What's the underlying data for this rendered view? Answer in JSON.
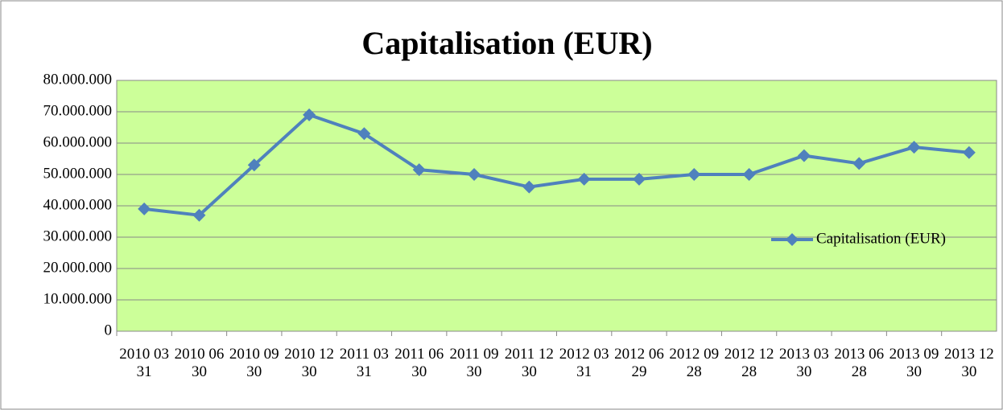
{
  "chart_data": {
    "type": "line",
    "title": "Capitalisation (EUR)",
    "categories": [
      "2010 03 31",
      "2010 06 30",
      "2010 09 30",
      "2010 12 30",
      "2011 03 31",
      "2011 06 30",
      "2011 09 30",
      "2011 12 30",
      "2012 03 31",
      "2012 06 29",
      "2012 09 28",
      "2012 12 28",
      "2013 03 30",
      "2013 06 28",
      "2013 09 30",
      "2013 12 30"
    ],
    "series": [
      {
        "name": "Capitalisation (EUR)",
        "color": "#4f81bd",
        "values": [
          39000000,
          37000000,
          53000000,
          69000000,
          63000000,
          51500000,
          50000000,
          46000000,
          48500000,
          48500000,
          50000000,
          50000000,
          56000000,
          53500000,
          58700000,
          57000000
        ]
      }
    ],
    "ylim": [
      0,
      80000000
    ],
    "yticks": [
      0,
      {
        "value": 10000000,
        "label": "10.000.000"
      },
      {
        "value": 20000000,
        "label": "20.000.000"
      },
      {
        "value": 30000000,
        "label": "30.000.000"
      },
      {
        "value": 40000000,
        "label": "40.000.000"
      },
      {
        "value": 50000000,
        "label": "50.000.000"
      },
      {
        "value": 60000000,
        "label": "60.000.000"
      },
      {
        "value": 70000000,
        "label": "70.000.000"
      },
      {
        "value": 80000000,
        "label": "80.000.000"
      }
    ],
    "grid": true,
    "legend": "right",
    "plot_background": "#ccff99"
  }
}
